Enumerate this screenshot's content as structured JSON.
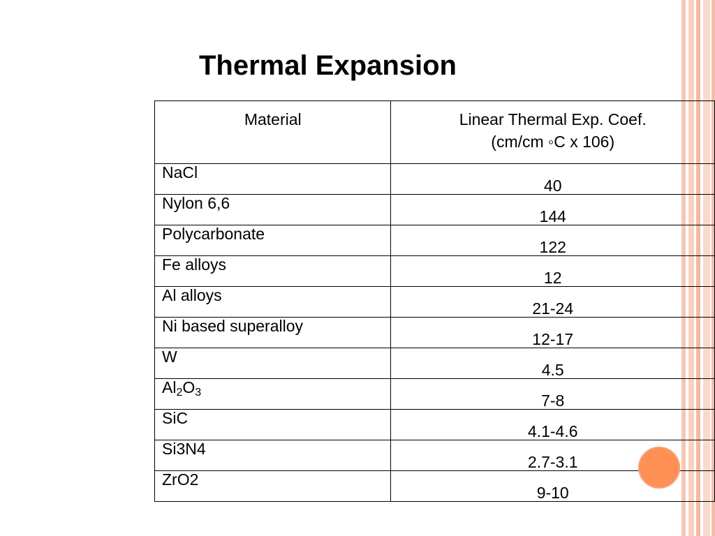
{
  "slide": {
    "title": "Thermal Expansion"
  },
  "table": {
    "header_material": "Material",
    "header_coef_line1": "Linear Thermal Exp. Coef.",
    "header_coef_line2": "(cm/cm ◦C x 106)",
    "rows": [
      {
        "material": "NaCl",
        "value": "40"
      },
      {
        "material": "Nylon 6,6",
        "value": "144"
      },
      {
        "material": "Polycarbonate",
        "value": "122"
      },
      {
        "material": "Fe alloys",
        "value": "12"
      },
      {
        "material": "Al alloys",
        "value": "21-24"
      },
      {
        "material": "Ni based superalloy",
        "value": "12-17"
      },
      {
        "material": "W",
        "value": "4.5"
      },
      {
        "material_parts": [
          "Al",
          "2",
          "O",
          "3"
        ],
        "value": "7-8"
      },
      {
        "material": "SiC",
        "value": "4.1-4.6"
      },
      {
        "material": "Si3N4",
        "value": "2.7-3.1"
      },
      {
        "material": "ZrO2",
        "value": "9-10"
      }
    ]
  },
  "colors": {
    "accent_circle": "#fe8f55",
    "stripe": "#f6c7b4"
  }
}
